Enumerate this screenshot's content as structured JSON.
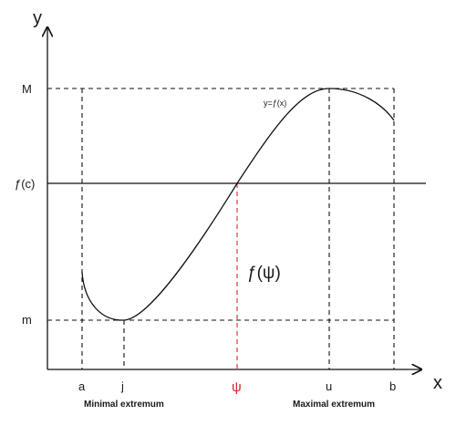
{
  "axes": {
    "x_name": "x",
    "y_name": "y"
  },
  "y_labels": {
    "max": "M",
    "fc": "ƒ(c)",
    "min": "m"
  },
  "x_labels": {
    "a": "a",
    "j": "j",
    "psi": "ψ",
    "u": "u",
    "b": "b"
  },
  "notes": {
    "minimal": "Minimal extremum",
    "maximal": "Maximal extremum"
  },
  "curve_label": "y=ƒ(x)",
  "f_psi_label": "ƒ(ψ)",
  "colors": {
    "ink": "#111111",
    "highlight": "#d8232a"
  }
}
